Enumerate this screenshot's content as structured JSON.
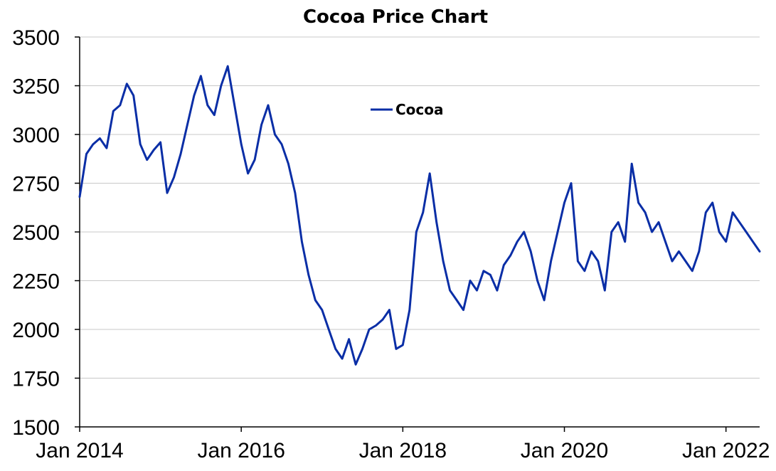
{
  "chart_data": {
    "type": "line",
    "title": "Cocoa Price Chart",
    "xlabel": "",
    "ylabel": "",
    "ylim": [
      1500,
      3500
    ],
    "xlim": [
      "2014-01",
      "2022-06"
    ],
    "y_ticks": [
      "1500",
      "1750",
      "2000",
      "2250",
      "2500",
      "2750",
      "3000",
      "3250",
      "3500"
    ],
    "x_ticks": [
      {
        "label": "Jan 2014",
        "x": "2014-01"
      },
      {
        "label": "Jan 2016",
        "x": "2016-01"
      },
      {
        "label": "Jan 2018",
        "x": "2018-01"
      },
      {
        "label": "Jan 2020",
        "x": "2020-01"
      },
      {
        "label": "Jan 2022",
        "x": "2022-01"
      }
    ],
    "grid": "horizontal",
    "legend_position": "upper-center",
    "series": [
      {
        "name": "Cocoa",
        "color": "#0a2ea6",
        "x": [
          "2014-01",
          "2014-02",
          "2014-03",
          "2014-04",
          "2014-05",
          "2014-06",
          "2014-07",
          "2014-08",
          "2014-09",
          "2014-10",
          "2014-11",
          "2014-12",
          "2015-01",
          "2015-02",
          "2015-03",
          "2015-04",
          "2015-05",
          "2015-06",
          "2015-07",
          "2015-08",
          "2015-09",
          "2015-10",
          "2015-11",
          "2015-12",
          "2016-01",
          "2016-02",
          "2016-03",
          "2016-04",
          "2016-05",
          "2016-06",
          "2016-07",
          "2016-08",
          "2016-09",
          "2016-10",
          "2016-11",
          "2016-12",
          "2017-01",
          "2017-02",
          "2017-03",
          "2017-04",
          "2017-05",
          "2017-06",
          "2017-07",
          "2017-08",
          "2017-09",
          "2017-10",
          "2017-11",
          "2017-12",
          "2018-01",
          "2018-02",
          "2018-03",
          "2018-04",
          "2018-05",
          "2018-06",
          "2018-07",
          "2018-08",
          "2018-09",
          "2018-10",
          "2018-11",
          "2018-12",
          "2019-01",
          "2019-02",
          "2019-03",
          "2019-04",
          "2019-05",
          "2019-06",
          "2019-07",
          "2019-08",
          "2019-09",
          "2019-10",
          "2019-11",
          "2019-12",
          "2020-01",
          "2020-02",
          "2020-03",
          "2020-04",
          "2020-05",
          "2020-06",
          "2020-07",
          "2020-08",
          "2020-09",
          "2020-10",
          "2020-11",
          "2020-12",
          "2021-01",
          "2021-02",
          "2021-03",
          "2021-04",
          "2021-05",
          "2021-06",
          "2021-07",
          "2021-08",
          "2021-09",
          "2021-10",
          "2021-11",
          "2021-12",
          "2022-01",
          "2022-02",
          "2022-03",
          "2022-04",
          "2022-05",
          "2022-06"
        ],
        "values": [
          2680,
          2900,
          2950,
          2980,
          2930,
          3120,
          3150,
          3260,
          3200,
          2950,
          2870,
          2920,
          2960,
          2700,
          2780,
          2900,
          3050,
          3200,
          3300,
          3150,
          3100,
          3250,
          3350,
          3150,
          2950,
          2800,
          2870,
          3050,
          3150,
          3000,
          2950,
          2850,
          2700,
          2450,
          2280,
          2150,
          2100,
          2000,
          1900,
          1850,
          1950,
          1820,
          1900,
          2000,
          2020,
          2050,
          2100,
          1900,
          1920,
          2100,
          2500,
          2600,
          2800,
          2550,
          2350,
          2200,
          2150,
          2100,
          2250,
          2200,
          2300,
          2280,
          2200,
          2330,
          2380,
          2450,
          2500,
          2400,
          2250,
          2150,
          2350,
          2500,
          2650,
          2750,
          2350,
          2300,
          2400,
          2350,
          2200,
          2500,
          2550,
          2450,
          2850,
          2650,
          2600,
          2500,
          2550,
          2450,
          2350,
          2400,
          2350,
          2300,
          2400,
          2600,
          2650,
          2500,
          2450,
          2600,
          2550,
          2500,
          2450,
          2400
        ]
      }
    ]
  }
}
